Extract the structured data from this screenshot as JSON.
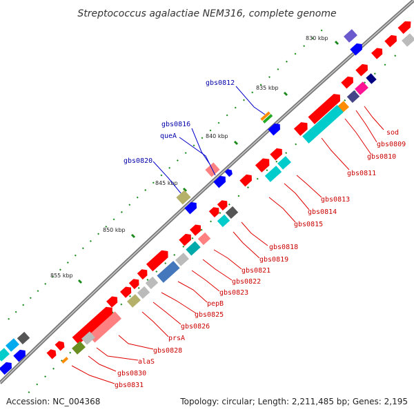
{
  "title": "Streptococcus agalactiae NEM316, complete genome",
  "footer": {
    "accession": "Accession: NC_004368",
    "summary": "Topology: circular; Length: 2,211,485 bp; Genes: 2,195"
  },
  "ticks": [
    {
      "label": "830 kbp"
    },
    {
      "label": "835 kbp"
    },
    {
      "label": "840 kbp"
    },
    {
      "label": "845 kbp"
    },
    {
      "label": "850 kbp"
    },
    {
      "label": "855 kbp"
    }
  ],
  "labels_minus": [
    {
      "text": "gbs0812"
    },
    {
      "text": "gbs0816"
    },
    {
      "text": "queA"
    },
    {
      "text": "gbs0820"
    }
  ],
  "labels_plus": [
    {
      "text": "sod"
    },
    {
      "text": "gbs0809"
    },
    {
      "text": "gbs0810"
    },
    {
      "text": "gbs0811"
    },
    {
      "text": "gbs0813"
    },
    {
      "text": "gbs0814"
    },
    {
      "text": "gbs0815"
    },
    {
      "text": "gbs0818"
    },
    {
      "text": "gbs0819"
    },
    {
      "text": "gbs0821"
    },
    {
      "text": "gbs0822"
    },
    {
      "text": "gbs0823"
    },
    {
      "text": "pepB"
    },
    {
      "text": "gbs0825"
    },
    {
      "text": "gbs0826"
    },
    {
      "text": "prsA"
    },
    {
      "text": "gbs0828"
    },
    {
      "text": "alaS"
    },
    {
      "text": "gbs0830"
    },
    {
      "text": "gbs0831"
    }
  ],
  "colors": {
    "backbone": "#888888",
    "forward_gene": "#ff0000",
    "reverse_gene": "#0000ff",
    "label_forward": "#cc0000",
    "label_reverse": "#0000aa",
    "tick_mark": "#1a8a1a",
    "cog_cyan": "#00cccc",
    "cog_steel": "#4477bb",
    "cog_grey": "#bbbbbb",
    "cog_darkgrey": "#555555",
    "cog_pink": "#ff8080",
    "cog_magenta": "#ff1493",
    "cog_navy": "#000080",
    "cog_orange": "#ff8c00",
    "cog_green": "#22aa22",
    "cog_khaki": "#b5b06a",
    "cog_olive": "#6b8e23",
    "cog_slate": "#6a5acd",
    "cog_skyblue": "#00aaee"
  }
}
